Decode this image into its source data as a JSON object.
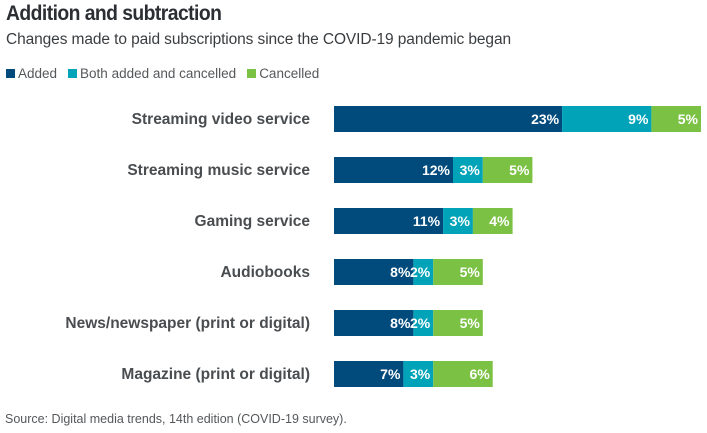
{
  "chart_data": {
    "type": "bar",
    "orientation": "horizontal",
    "stacked": true,
    "title": "Addition and subtraction",
    "subtitle": "Changes made to paid subscriptions since the COVID-19 pandemic began",
    "source": "Source: Digital media trends, 14th edition (COVID-19 survey).",
    "xlabel": "",
    "ylabel": "",
    "grid": false,
    "legend_position": "top-left",
    "categories": [
      "Streaming video service",
      "Streaming music service",
      "Gaming service",
      "Audiobooks",
      "News/newspaper (print or digital)",
      "Magazine (print or digital)"
    ],
    "series": [
      {
        "name": "Added",
        "color": "#004a7c",
        "values": [
          23,
          12,
          11,
          8,
          8,
          7
        ]
      },
      {
        "name": "Both added and cancelled",
        "color": "#00a3b8",
        "values": [
          9,
          3,
          3,
          2,
          2,
          3
        ]
      },
      {
        "name": "Cancelled",
        "color": "#7bc143",
        "values": [
          5,
          5,
          4,
          5,
          5,
          6
        ]
      }
    ],
    "value_suffix": "%",
    "xlim": [
      0,
      37
    ]
  }
}
